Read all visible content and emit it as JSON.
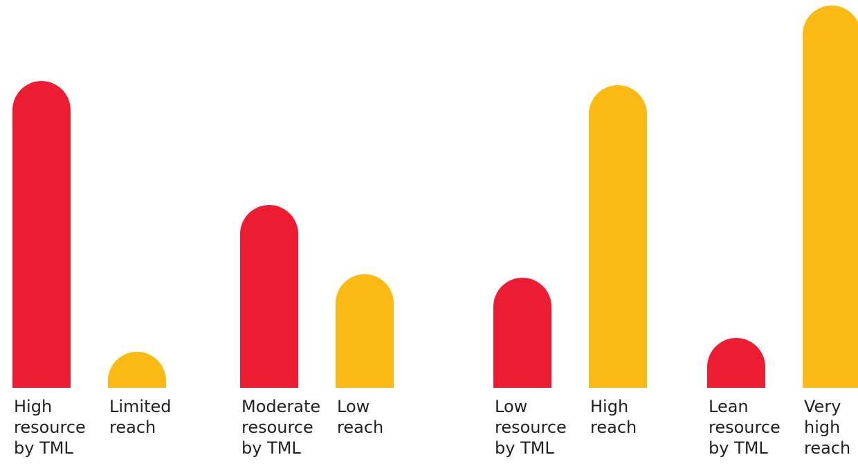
{
  "chart_data": {
    "type": "bar",
    "grid": false,
    "legend": "none",
    "ylim": [
      0,
      552
    ],
    "colors": {
      "resource": "#ed1c33",
      "reach": "#fbba12"
    },
    "groups": [
      {
        "bars": [
          {
            "series": "resource",
            "value": 443,
            "label": [
              "High",
              "resource",
              "by TML"
            ]
          },
          {
            "series": "reach",
            "value": 52,
            "label": [
              "Limited",
              "reach"
            ]
          }
        ]
      },
      {
        "bars": [
          {
            "series": "resource",
            "value": 264,
            "label": [
              "Moderate",
              "resource",
              "by TML"
            ]
          },
          {
            "series": "reach",
            "value": 164,
            "label": [
              "Low",
              "reach"
            ]
          }
        ]
      },
      {
        "bars": [
          {
            "series": "resource",
            "value": 159,
            "label": [
              "Low",
              "resource",
              "by TML"
            ]
          },
          {
            "series": "reach",
            "value": 437,
            "label": [
              "High",
              "reach"
            ]
          }
        ]
      },
      {
        "bars": [
          {
            "series": "resource",
            "value": 72,
            "label": [
              "Lean",
              "resource",
              "by TML"
            ]
          },
          {
            "series": "reach",
            "value": 552,
            "label": [
              "Very",
              "high",
              "reach"
            ]
          }
        ]
      }
    ]
  }
}
